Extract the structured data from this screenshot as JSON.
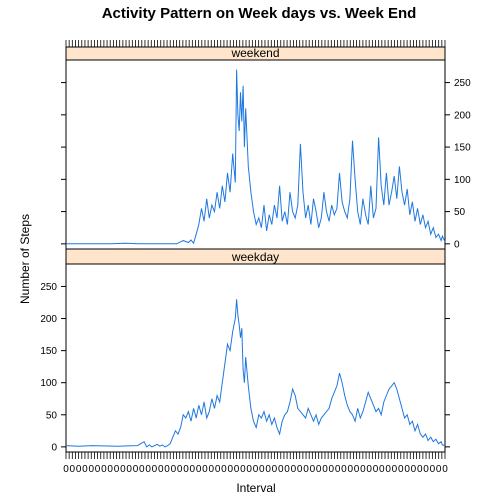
{
  "chart_data": {
    "type": "line",
    "title": "Activity Pattern on Week days vs. Week End",
    "xlabel": "Interval",
    "ylabel": "Number of Steps",
    "ylim": [
      -8,
      285
    ],
    "yticks": [
      0,
      50,
      100,
      150,
      200,
      250
    ],
    "line_color": "#1f78e0",
    "strip_color": "#ffe5cc",
    "x_tick_label": "0",
    "panels": [
      {
        "name": "weekend",
        "anchors": [
          [
            0,
            0
          ],
          [
            35,
            0
          ],
          [
            45,
            1
          ],
          [
            55,
            0
          ],
          [
            85,
            0
          ],
          [
            90,
            5
          ],
          [
            94,
            2
          ],
          [
            96,
            6
          ],
          [
            98,
            1
          ],
          [
            100,
            15
          ],
          [
            102,
            30
          ],
          [
            104,
            55
          ],
          [
            106,
            35
          ],
          [
            108,
            70
          ],
          [
            110,
            40
          ],
          [
            112,
            60
          ],
          [
            114,
            50
          ],
          [
            116,
            80
          ],
          [
            118,
            55
          ],
          [
            120,
            90
          ],
          [
            122,
            65
          ],
          [
            124,
            110
          ],
          [
            126,
            80
          ],
          [
            128,
            140
          ],
          [
            130,
            95
          ],
          [
            131,
            270
          ],
          [
            132,
            200
          ],
          [
            133,
            175
          ],
          [
            134,
            235
          ],
          [
            135,
            190
          ],
          [
            136,
            245
          ],
          [
            137,
            150
          ],
          [
            138,
            210
          ],
          [
            140,
            120
          ],
          [
            142,
            80
          ],
          [
            144,
            50
          ],
          [
            146,
            30
          ],
          [
            148,
            40
          ],
          [
            150,
            25
          ],
          [
            152,
            60
          ],
          [
            154,
            20
          ],
          [
            156,
            45
          ],
          [
            158,
            30
          ],
          [
            160,
            60
          ],
          [
            162,
            40
          ],
          [
            164,
            90
          ],
          [
            166,
            35
          ],
          [
            168,
            50
          ],
          [
            170,
            30
          ],
          [
            172,
            80
          ],
          [
            174,
            50
          ],
          [
            176,
            40
          ],
          [
            178,
            60
          ],
          [
            180,
            155
          ],
          [
            182,
            80
          ],
          [
            184,
            40
          ],
          [
            186,
            60
          ],
          [
            188,
            30
          ],
          [
            190,
            70
          ],
          [
            192,
            50
          ],
          [
            194,
            25
          ],
          [
            196,
            40
          ],
          [
            198,
            80
          ],
          [
            200,
            50
          ],
          [
            202,
            35
          ],
          [
            204,
            60
          ],
          [
            206,
            45
          ],
          [
            208,
            55
          ],
          [
            210,
            110
          ],
          [
            212,
            65
          ],
          [
            214,
            50
          ],
          [
            216,
            40
          ],
          [
            218,
            70
          ],
          [
            220,
            160
          ],
          [
            222,
            100
          ],
          [
            224,
            50
          ],
          [
            226,
            30
          ],
          [
            228,
            70
          ],
          [
            230,
            45
          ],
          [
            232,
            30
          ],
          [
            234,
            90
          ],
          [
            236,
            40
          ],
          [
            238,
            55
          ],
          [
            240,
            165
          ],
          [
            242,
            90
          ],
          [
            244,
            60
          ],
          [
            246,
            110
          ],
          [
            248,
            60
          ],
          [
            250,
            80
          ],
          [
            252,
            105
          ],
          [
            254,
            70
          ],
          [
            256,
            120
          ],
          [
            258,
            80
          ],
          [
            260,
            60
          ],
          [
            262,
            85
          ],
          [
            264,
            45
          ],
          [
            266,
            65
          ],
          [
            268,
            35
          ],
          [
            270,
            55
          ],
          [
            272,
            30
          ],
          [
            274,
            45
          ],
          [
            276,
            25
          ],
          [
            278,
            35
          ],
          [
            280,
            15
          ],
          [
            282,
            25
          ],
          [
            284,
            10
          ],
          [
            286,
            15
          ],
          [
            288,
            5
          ],
          [
            289,
            12
          ],
          [
            291,
            3
          ]
        ]
      },
      {
        "name": "weekday",
        "anchors": [
          [
            0,
            2
          ],
          [
            10,
            1
          ],
          [
            20,
            2
          ],
          [
            40,
            1
          ],
          [
            55,
            2
          ],
          [
            60,
            8
          ],
          [
            62,
            0
          ],
          [
            64,
            3
          ],
          [
            66,
            0
          ],
          [
            68,
            2
          ],
          [
            70,
            4
          ],
          [
            72,
            1
          ],
          [
            74,
            3
          ],
          [
            76,
            0
          ],
          [
            78,
            2
          ],
          [
            80,
            5
          ],
          [
            82,
            15
          ],
          [
            84,
            25
          ],
          [
            86,
            20
          ],
          [
            88,
            30
          ],
          [
            90,
            50
          ],
          [
            92,
            45
          ],
          [
            94,
            55
          ],
          [
            96,
            40
          ],
          [
            98,
            60
          ],
          [
            100,
            45
          ],
          [
            102,
            65
          ],
          [
            104,
            50
          ],
          [
            106,
            70
          ],
          [
            108,
            45
          ],
          [
            110,
            55
          ],
          [
            112,
            75
          ],
          [
            114,
            60
          ],
          [
            116,
            80
          ],
          [
            118,
            70
          ],
          [
            120,
            100
          ],
          [
            122,
            130
          ],
          [
            124,
            160
          ],
          [
            126,
            150
          ],
          [
            128,
            180
          ],
          [
            130,
            200
          ],
          [
            131,
            230
          ],
          [
            132,
            205
          ],
          [
            133,
            190
          ],
          [
            134,
            170
          ],
          [
            135,
            185
          ],
          [
            136,
            120
          ],
          [
            137,
            100
          ],
          [
            138,
            140
          ],
          [
            140,
            95
          ],
          [
            142,
            60
          ],
          [
            144,
            40
          ],
          [
            146,
            30
          ],
          [
            148,
            50
          ],
          [
            150,
            45
          ],
          [
            152,
            55
          ],
          [
            154,
            40
          ],
          [
            156,
            50
          ],
          [
            158,
            35
          ],
          [
            160,
            45
          ],
          [
            162,
            30
          ],
          [
            164,
            20
          ],
          [
            166,
            40
          ],
          [
            168,
            50
          ],
          [
            170,
            55
          ],
          [
            172,
            70
          ],
          [
            174,
            90
          ],
          [
            176,
            80
          ],
          [
            178,
            60
          ],
          [
            180,
            55
          ],
          [
            182,
            50
          ],
          [
            184,
            45
          ],
          [
            186,
            60
          ],
          [
            188,
            50
          ],
          [
            190,
            40
          ],
          [
            192,
            50
          ],
          [
            194,
            35
          ],
          [
            196,
            45
          ],
          [
            198,
            50
          ],
          [
            200,
            55
          ],
          [
            202,
            60
          ],
          [
            204,
            75
          ],
          [
            206,
            85
          ],
          [
            208,
            95
          ],
          [
            210,
            115
          ],
          [
            212,
            100
          ],
          [
            214,
            80
          ],
          [
            216,
            65
          ],
          [
            218,
            55
          ],
          [
            220,
            50
          ],
          [
            222,
            40
          ],
          [
            224,
            60
          ],
          [
            226,
            45
          ],
          [
            228,
            55
          ],
          [
            230,
            70
          ],
          [
            232,
            85
          ],
          [
            234,
            75
          ],
          [
            236,
            65
          ],
          [
            238,
            55
          ],
          [
            240,
            60
          ],
          [
            242,
            50
          ],
          [
            244,
            70
          ],
          [
            246,
            80
          ],
          [
            248,
            90
          ],
          [
            250,
            95
          ],
          [
            252,
            100
          ],
          [
            254,
            90
          ],
          [
            256,
            75
          ],
          [
            258,
            60
          ],
          [
            260,
            45
          ],
          [
            262,
            50
          ],
          [
            264,
            35
          ],
          [
            266,
            40
          ],
          [
            268,
            25
          ],
          [
            270,
            35
          ],
          [
            272,
            20
          ],
          [
            274,
            15
          ],
          [
            276,
            20
          ],
          [
            278,
            10
          ],
          [
            280,
            15
          ],
          [
            282,
            8
          ],
          [
            284,
            12
          ],
          [
            286,
            5
          ],
          [
            288,
            8
          ],
          [
            289,
            3
          ],
          [
            291,
            2
          ]
        ]
      }
    ]
  }
}
